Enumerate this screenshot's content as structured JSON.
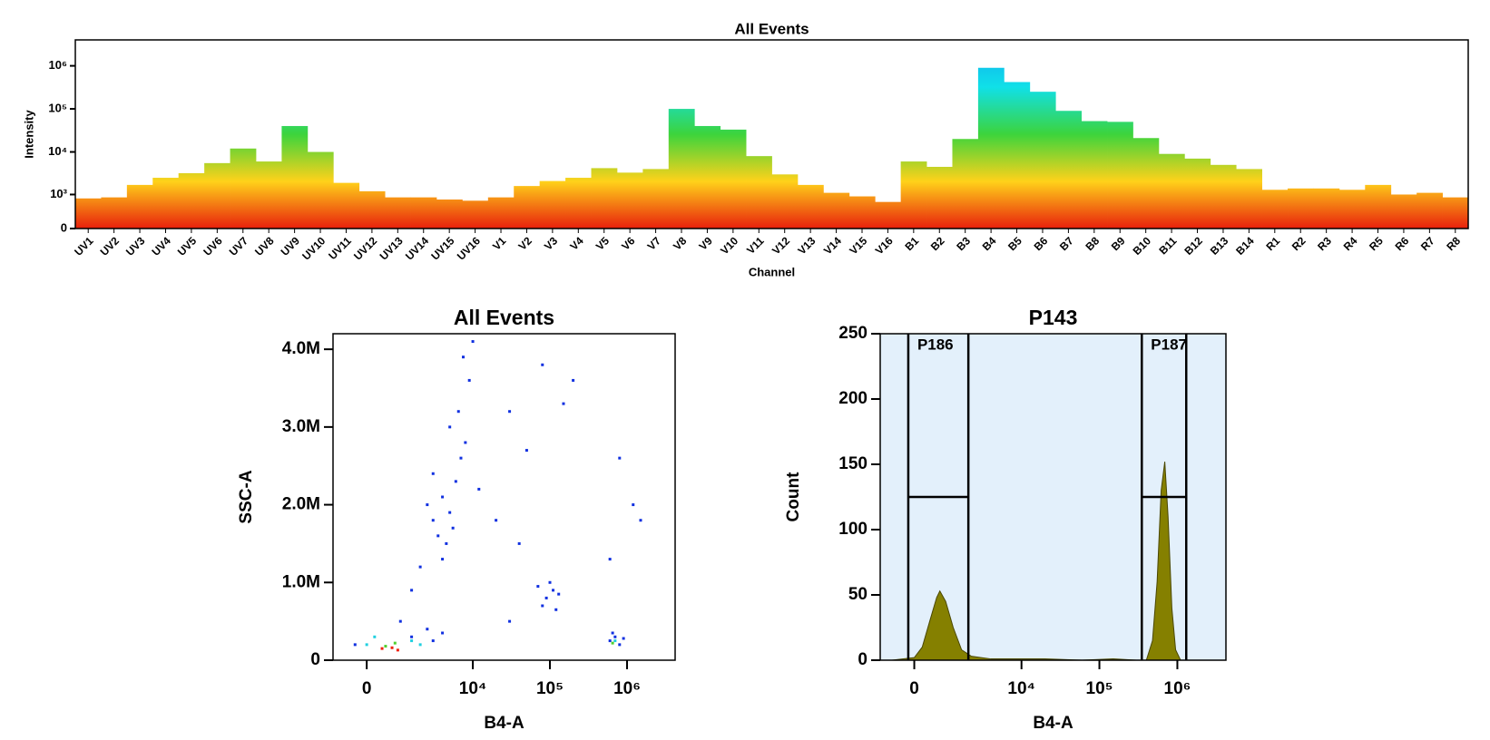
{
  "chart_data": [
    {
      "type": "spectrum",
      "title": "All Events",
      "ylabel": "Intensity",
      "xlabel": "Channel",
      "yscale": "biex",
      "categories": [
        "UV1",
        "UV2",
        "UV3",
        "UV4",
        "UV5",
        "UV6",
        "UV7",
        "UV8",
        "UV9",
        "UV10",
        "UV11",
        "UV12",
        "UV13",
        "UV14",
        "UV15",
        "UV16",
        "V1",
        "V2",
        "V3",
        "V4",
        "V5",
        "V6",
        "V7",
        "V8",
        "V9",
        "V10",
        "V11",
        "V12",
        "V13",
        "V14",
        "V15",
        "V16",
        "B1",
        "B2",
        "B3",
        "B4",
        "B5",
        "B6",
        "B7",
        "B8",
        "B9",
        "B10",
        "B11",
        "B12",
        "B13",
        "B14",
        "R1",
        "R2",
        "R3",
        "R4",
        "R5",
        "R6",
        "R7",
        "R8"
      ],
      "values": [
        800,
        850,
        1700,
        2500,
        3200,
        5500,
        12000,
        6000,
        40000,
        10000,
        1900,
        1200,
        850,
        850,
        750,
        700,
        850,
        1600,
        2100,
        2500,
        4200,
        3300,
        4000,
        100000,
        40000,
        33000,
        8000,
        3000,
        1700,
        1100,
        900,
        650,
        6000,
        4500,
        20000,
        900000,
        420000,
        250000,
        90000,
        52000,
        50000,
        21000,
        9000,
        7000,
        5000,
        4000,
        1300,
        1400,
        1400,
        1300,
        1700,
        1000,
        1100,
        850
      ],
      "colormap": [
        "#e8200c",
        "#ffd21a",
        "#3cd43c",
        "#10e0e8",
        "#10a8f0"
      ],
      "ylim": [
        0,
        4000000
      ],
      "yticks": [
        0,
        {
          "value": 1000,
          "label": "10³"
        },
        {
          "value": 10000,
          "label": "10⁴"
        },
        {
          "value": 100000,
          "label": "10⁵"
        },
        {
          "value": 1000000,
          "label": "10⁶"
        }
      ]
    },
    {
      "type": "scatter",
      "title": "All Events",
      "xlabel": "B4-A",
      "ylabel": "SSC-A",
      "xscale": "biex",
      "xlim": [
        -1000,
        4200000
      ],
      "ylim": [
        0,
        4200000
      ],
      "xticks": [
        0,
        {
          "value": 10000,
          "label": "10⁴"
        },
        {
          "value": 100000,
          "label": "10⁵"
        },
        {
          "value": 1000000,
          "label": "10⁶"
        }
      ],
      "yticks": [
        0,
        {
          "value": 1000000,
          "label": "1.0M"
        },
        {
          "value": 2000000,
          "label": "2.0M"
        },
        {
          "value": 3000000,
          "label": "3.0M"
        },
        {
          "value": 4000000,
          "label": "4.0M"
        }
      ],
      "series": [
        {
          "color": "#1030e0",
          "x": [
            3000,
            4000,
            5000,
            3500,
            6000,
            2500,
            4500,
            7000,
            3000,
            5500,
            8000,
            6500,
            9000,
            7500,
            10000,
            5000,
            2000,
            1500,
            4000,
            12000,
            20000,
            30000,
            50000,
            80000,
            150000,
            200000,
            90000,
            110000,
            80000,
            130000,
            100000,
            70000,
            120000,
            600000,
            700000,
            800000,
            650000,
            900000,
            1500,
            2500,
            3000,
            4000,
            -300,
            1000,
            600000,
            1500000,
            1200000,
            30000,
            40000,
            800000
          ],
          "y": [
            1800000,
            2100000,
            1900000,
            1600000,
            2300000,
            2000000,
            1500000,
            2600000,
            2400000,
            1700000,
            2800000,
            3200000,
            3600000,
            3900000,
            4100000,
            3000000,
            1200000,
            900000,
            1300000,
            2200000,
            1800000,
            3200000,
            2700000,
            3800000,
            3300000,
            3600000,
            800000,
            900000,
            700000,
            850000,
            1000000,
            950000,
            650000,
            250000,
            300000,
            200000,
            350000,
            280000,
            300000,
            400000,
            250000,
            350000,
            200000,
            500000,
            1300000,
            1800000,
            2000000,
            500000,
            1500000,
            2600000
          ]
        },
        {
          "color": "#20d0e0",
          "x": [
            0,
            1500,
            200,
            700000,
            2000
          ],
          "y": [
            200000,
            250000,
            300000,
            250000,
            200000
          ]
        },
        {
          "color": "#50d030",
          "x": [
            500,
            800,
            650000
          ],
          "y": [
            180000,
            220000,
            220000
          ]
        },
        {
          "color": "#f02010",
          "x": [
            400,
            700,
            900
          ],
          "y": [
            150000,
            160000,
            130000
          ]
        }
      ]
    },
    {
      "type": "area",
      "title": "P143",
      "xlabel": "B4-A",
      "ylabel": "Count",
      "xscale": "biex",
      "xlim": [
        -1000,
        4200000
      ],
      "ylim": [
        0,
        250
      ],
      "xticks": [
        0,
        {
          "value": 10000,
          "label": "10⁴"
        },
        {
          "value": 100000,
          "label": "10⁵"
        },
        {
          "value": 1000000,
          "label": "10⁶"
        }
      ],
      "yticks": [
        0,
        50,
        100,
        150,
        200,
        250
      ],
      "color": "#858000",
      "background": "#e3f0fb",
      "x": [
        -600,
        -300,
        0,
        200,
        400,
        600,
        700,
        900,
        1200,
        1600,
        2200,
        4000,
        10000,
        20000,
        60000,
        150000,
        300000,
        400000,
        480000,
        550000,
        620000,
        690000,
        760000,
        850000,
        950000,
        1100000,
        2000000
      ],
      "values": [
        0,
        1,
        2,
        10,
        30,
        48,
        53,
        45,
        25,
        8,
        3,
        1,
        1,
        1,
        0,
        1,
        0,
        0,
        15,
        60,
        130,
        152,
        110,
        40,
        8,
        0,
        0
      ],
      "gates": [
        {
          "label": "P186",
          "range": [
            -150,
            2000
          ],
          "level": 125
        },
        {
          "label": "P187",
          "range": [
            350000,
            1300000
          ],
          "level": 125
        }
      ]
    }
  ]
}
